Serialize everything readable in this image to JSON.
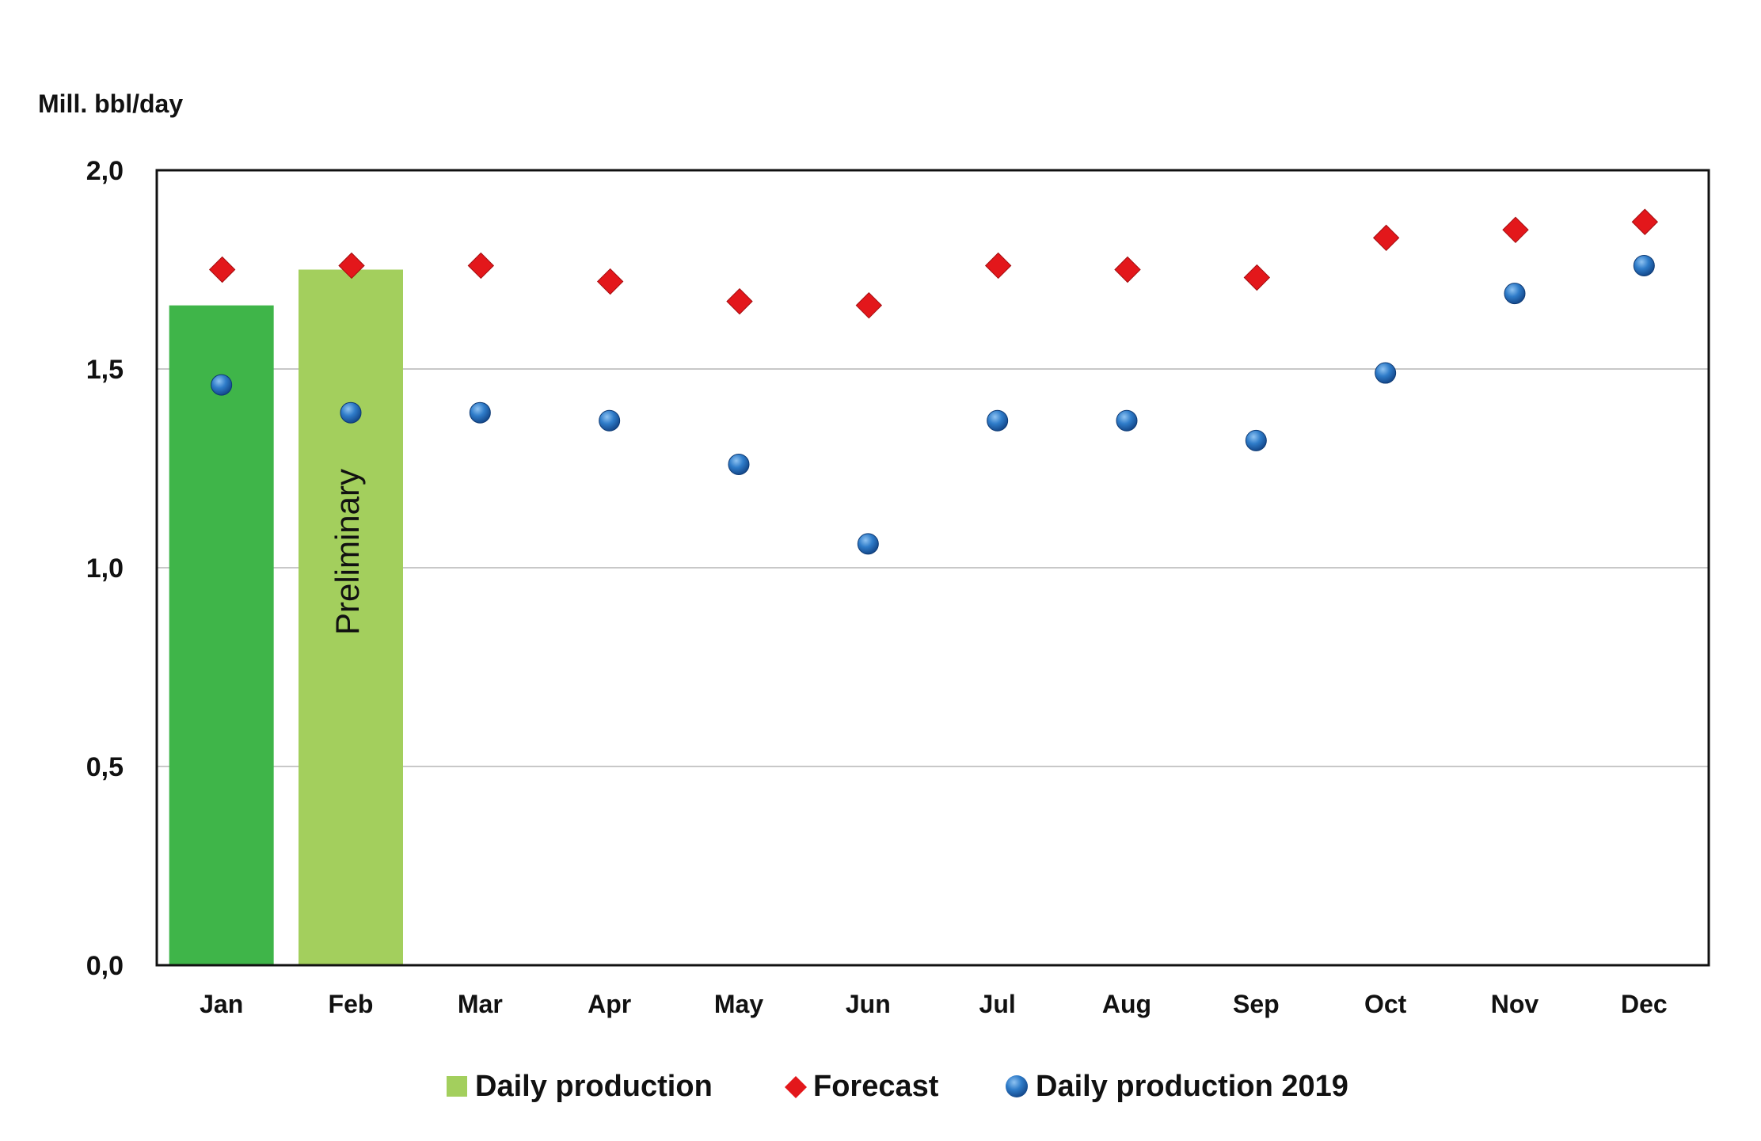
{
  "chart_data": {
    "type": "bar",
    "ylabel": "Mill. bbl/day",
    "ylim": [
      0,
      2.0
    ],
    "yticks": [
      "0,0",
      "0,5",
      "1,0",
      "1,5",
      "2,0"
    ],
    "categories": [
      "Jan",
      "Feb",
      "Mar",
      "Apr",
      "May",
      "Jun",
      "Jul",
      "Aug",
      "Sep",
      "Oct",
      "Nov",
      "Dec"
    ],
    "grid": true,
    "legend_position": "bottom",
    "series": [
      {
        "name": "Daily production",
        "kind": "bar",
        "values": [
          1.66,
          1.75,
          null,
          null,
          null,
          null,
          null,
          null,
          null,
          null,
          null,
          null
        ],
        "bar_colors": [
          "#3fb549",
          "#a3cf5d"
        ]
      },
      {
        "name": "Forecast",
        "kind": "diamond",
        "color": "#e3171b",
        "values": [
          1.75,
          1.76,
          1.76,
          1.72,
          1.67,
          1.66,
          1.76,
          1.75,
          1.73,
          1.83,
          1.85,
          1.87
        ]
      },
      {
        "name": "Daily production 2019",
        "kind": "circle",
        "color": "#1f64b0",
        "values": [
          1.46,
          1.39,
          1.39,
          1.37,
          1.26,
          1.06,
          1.37,
          1.37,
          1.32,
          1.49,
          1.69,
          1.76
        ]
      }
    ],
    "annotations": [
      {
        "category": "Feb",
        "text": "Preliminary"
      }
    ]
  }
}
